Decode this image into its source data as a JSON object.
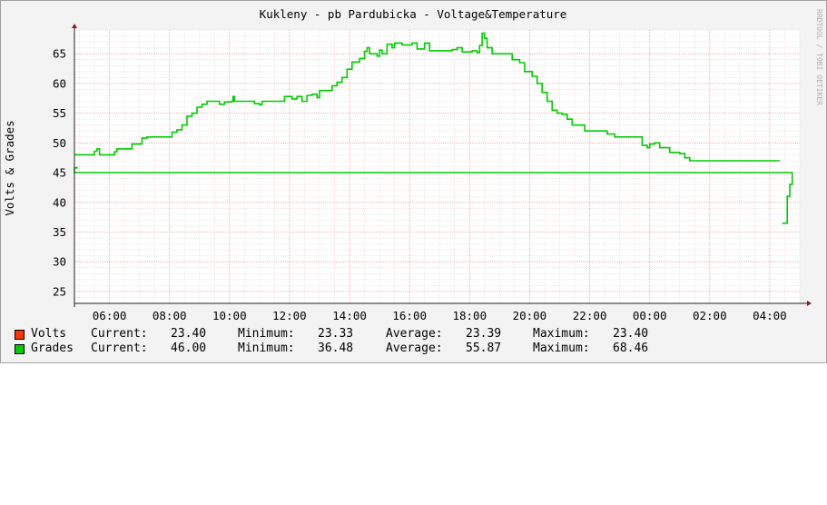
{
  "chart_data": {
    "type": "line",
    "title": "Kukleny - pb Pardubicka - Voltage&Temperature",
    "ylabel": "Volts & Grades",
    "watermark": "RRDTOOL / TOBI OETIKER",
    "ylim": [
      23,
      69
    ],
    "yticks": [
      "25",
      "30",
      "35",
      "40",
      "45",
      "50",
      "55",
      "60",
      "65"
    ],
    "xlim": [
      "04:50",
      "05:00+1d"
    ],
    "xticks": [
      "06:00",
      "08:00",
      "10:00",
      "12:00",
      "14:00",
      "16:00",
      "18:00",
      "20:00",
      "22:00",
      "00:00",
      "02:00",
      "04:00"
    ],
    "grid": true,
    "colors": {
      "grades": "#00cc00",
      "volts": "#ff3300"
    },
    "series": [
      {
        "name": "Grades",
        "segments": [
          [
            [
              "04:50",
              48.0
            ],
            [
              "05:25",
              48.0
            ],
            [
              "05:30",
              48.6
            ],
            [
              "05:35",
              49.0
            ],
            [
              "05:40",
              48.0
            ],
            [
              "06:05",
              48.0
            ],
            [
              "06:10",
              48.5
            ],
            [
              "06:15",
              49.0
            ],
            [
              "06:40",
              49.0
            ],
            [
              "06:45",
              49.8
            ],
            [
              "07:00",
              49.8
            ],
            [
              "07:05",
              50.8
            ],
            [
              "07:15",
              51.0
            ],
            [
              "08:00",
              51.0
            ],
            [
              "08:05",
              51.8
            ],
            [
              "08:15",
              52.2
            ],
            [
              "08:25",
              53.0
            ],
            [
              "08:35",
              54.5
            ],
            [
              "08:45",
              55.0
            ],
            [
              "08:55",
              56.0
            ],
            [
              "09:05",
              56.5
            ],
            [
              "09:15",
              57.0
            ],
            [
              "09:35",
              57.0
            ],
            [
              "09:40",
              56.5
            ],
            [
              "09:50",
              56.9
            ],
            [
              "10:05",
              57.0
            ],
            [
              "10:07",
              57.8
            ],
            [
              "10:10",
              57.0
            ],
            [
              "10:45",
              57.0
            ],
            [
              "10:50",
              56.6
            ],
            [
              "11:00",
              56.4
            ],
            [
              "11:05",
              57.0
            ],
            [
              "11:45",
              57.0
            ],
            [
              "11:50",
              57.8
            ],
            [
              "12:05",
              57.4
            ],
            [
              "12:15",
              57.8
            ],
            [
              "12:25",
              57.0
            ],
            [
              "12:35",
              58.0
            ],
            [
              "12:45",
              58.2
            ],
            [
              "12:55",
              57.6
            ],
            [
              "13:00",
              58.8
            ],
            [
              "13:15",
              58.8
            ],
            [
              "13:25",
              59.6
            ],
            [
              "13:35",
              60.2
            ],
            [
              "13:45",
              61.0
            ],
            [
              "13:55",
              62.4
            ],
            [
              "14:05",
              63.6
            ],
            [
              "14:20",
              64.2
            ],
            [
              "14:30",
              65.4
            ],
            [
              "14:35",
              66.0
            ],
            [
              "14:40",
              65.0
            ],
            [
              "14:55",
              64.6
            ],
            [
              "15:00",
              65.6
            ],
            [
              "15:05",
              65.0
            ],
            [
              "15:15",
              66.6
            ],
            [
              "15:25",
              66.0
            ],
            [
              "15:30",
              66.8
            ],
            [
              "15:45",
              66.5
            ],
            [
              "16:05",
              66.8
            ],
            [
              "16:15",
              65.8
            ],
            [
              "16:30",
              66.8
            ],
            [
              "16:40",
              65.5
            ],
            [
              "17:15",
              65.5
            ],
            [
              "17:25",
              65.7
            ],
            [
              "17:35",
              66.0
            ],
            [
              "17:45",
              65.3
            ],
            [
              "18:05",
              65.5
            ],
            [
              "18:15",
              65.2
            ],
            [
              "18:20",
              66.4
            ],
            [
              "18:25",
              68.46
            ],
            [
              "18:30",
              67.6
            ],
            [
              "18:35",
              66.0
            ],
            [
              "18:45",
              65.0
            ],
            [
              "19:15",
              65.0
            ],
            [
              "19:25",
              64.0
            ],
            [
              "19:40",
              63.5
            ],
            [
              "19:50",
              62.0
            ],
            [
              "20:05",
              61.2
            ],
            [
              "20:15",
              60.0
            ],
            [
              "20:25",
              58.5
            ],
            [
              "20:35",
              57.0
            ],
            [
              "20:45",
              55.5
            ],
            [
              "20:55",
              55.0
            ],
            [
              "21:05",
              54.8
            ],
            [
              "21:15",
              54.0
            ],
            [
              "21:25",
              53.0
            ],
            [
              "21:45",
              53.0
            ],
            [
              "21:50",
              52.0
            ],
            [
              "22:30",
              52.0
            ],
            [
              "22:35",
              51.5
            ],
            [
              "22:50",
              51.0
            ],
            [
              "23:35",
              51.0
            ],
            [
              "23:45",
              49.6
            ],
            [
              "23:55",
              49.2
            ],
            [
              "00:00",
              49.8
            ],
            [
              "00:10",
              50.0
            ],
            [
              "00:20",
              49.2
            ],
            [
              "00:30",
              49.2
            ],
            [
              "00:40",
              48.4
            ],
            [
              "01:00",
              48.2
            ],
            [
              "01:10",
              47.5
            ],
            [
              "01:20",
              47.0
            ],
            [
              "04:20",
              47.0
            ]
          ],
          [
            [
              "04:25",
              36.48
            ],
            [
              "04:30",
              36.5
            ],
            [
              "04:35",
              41.0
            ],
            [
              "04:40",
              43.0
            ],
            [
              "04:45",
              45.0
            ],
            [
              "04:50",
              45.8
            ],
            [
              "04:55",
              46.0
            ]
          ]
        ]
      }
    ]
  },
  "legend": {
    "rows": [
      {
        "name": "Volts",
        "color": "#ff3300",
        "current_label": "Current:",
        "current": "23.40",
        "minimum_label": "Minimum:",
        "minimum": "23.33",
        "average_label": "Average:",
        "average": "23.39",
        "maximum_label": "Maximum:",
        "maximum": "23.40"
      },
      {
        "name": "Grades",
        "color": "#00cc00",
        "current_label": "Current:",
        "current": "46.00",
        "minimum_label": "Minimum:",
        "minimum": "36.48",
        "average_label": "Average:",
        "average": "55.87",
        "maximum_label": "Maximum:",
        "maximum": "68.46"
      }
    ]
  }
}
